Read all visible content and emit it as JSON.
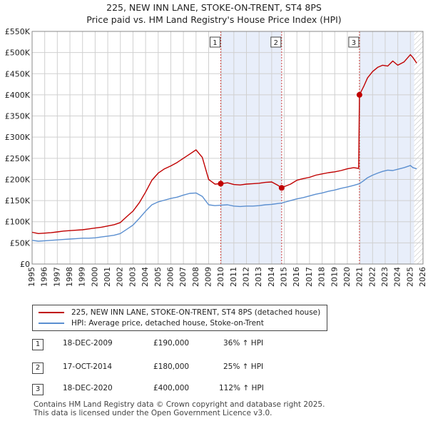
{
  "title_line1": "225, NEW INN LANE, STOKE-ON-TRENT, ST4 8PS",
  "title_line2": "Price paid vs. HM Land Registry's House Price Index (HPI)",
  "chart_data": {
    "type": "line",
    "xlim": [
      1995,
      2026
    ],
    "ylim": [
      0,
      550000
    ],
    "y_ticks": [
      0,
      50000,
      100000,
      150000,
      200000,
      250000,
      300000,
      350000,
      400000,
      450000,
      500000,
      550000
    ],
    "y_tick_labels": [
      "£0",
      "£50K",
      "£100K",
      "£150K",
      "£200K",
      "£250K",
      "£300K",
      "£350K",
      "£400K",
      "£450K",
      "£500K",
      "£550K"
    ],
    "x_ticks": [
      1995,
      1996,
      1997,
      1998,
      1999,
      2000,
      2001,
      2002,
      2003,
      2004,
      2005,
      2006,
      2007,
      2008,
      2009,
      2010,
      2011,
      2012,
      2013,
      2014,
      2015,
      2016,
      2017,
      2018,
      2019,
      2020,
      2021,
      2022,
      2023,
      2024,
      2025,
      2026
    ],
    "x_tick_labels": [
      "1995",
      "1996",
      "1997",
      "1998",
      "1999",
      "2000",
      "2001",
      "2002",
      "2003",
      "2004",
      "2005",
      "2006",
      "2007",
      "2008",
      "2009",
      "2010",
      "2011",
      "2012",
      "2013",
      "2014",
      "2015",
      "2016",
      "2017",
      "2018",
      "2019",
      "2020",
      "2021",
      "2022",
      "2023",
      "2024",
      "2025",
      "2026"
    ],
    "grid": true,
    "shaded_regions": [
      [
        2009.96,
        2014.79
      ],
      [
        2020.96,
        2025.3
      ]
    ],
    "hatched_region": [
      2025.3,
      2026
    ],
    "series": [
      {
        "name": "225, NEW INN LANE, STOKE-ON-TRENT, ST4 8PS (detached house)",
        "color": "#c00000",
        "x": [
          1995.0,
          1995.5,
          1996.0,
          1996.5,
          1997.0,
          1997.5,
          1998.0,
          1998.5,
          1999.0,
          1999.5,
          2000.0,
          2000.5,
          2001.0,
          2001.5,
          2002.0,
          2002.5,
          2003.0,
          2003.5,
          2004.0,
          2004.5,
          2005.0,
          2005.5,
          2006.0,
          2006.5,
          2007.0,
          2007.5,
          2008.0,
          2008.5,
          2009.0,
          2009.5,
          2009.96,
          2010.5,
          2011.0,
          2011.5,
          2012.0,
          2012.5,
          2013.0,
          2013.5,
          2014.0,
          2014.5,
          2014.79,
          2015.0,
          2015.5,
          2016.0,
          2016.5,
          2017.0,
          2017.5,
          2018.0,
          2018.5,
          2019.0,
          2019.5,
          2020.0,
          2020.5,
          2020.9,
          2020.96,
          2021.3,
          2021.6,
          2022.0,
          2022.4,
          2022.8,
          2023.2,
          2023.6,
          2024.0,
          2024.5,
          2025.0,
          2025.2,
          2025.5
        ],
        "values": [
          75000,
          72000,
          73000,
          74000,
          76000,
          78000,
          79000,
          80000,
          81000,
          83000,
          85000,
          87000,
          90000,
          93000,
          98000,
          112000,
          125000,
          145000,
          170000,
          198000,
          215000,
          225000,
          232000,
          240000,
          250000,
          260000,
          270000,
          252000,
          200000,
          189000,
          190000,
          192000,
          188000,
          187000,
          189000,
          190000,
          191000,
          193000,
          194000,
          186000,
          180000,
          183000,
          189000,
          198000,
          202000,
          205000,
          210000,
          213000,
          216000,
          218000,
          221000,
          225000,
          228000,
          226000,
          400000,
          420000,
          440000,
          455000,
          465000,
          470000,
          468000,
          480000,
          470000,
          478000,
          495000,
          488000,
          475000
        ]
      },
      {
        "name": "HPI: Average price, detached house, Stoke-on-Trent",
        "color": "#5b8fd0",
        "x": [
          1995.0,
          1995.5,
          1996.0,
          1996.5,
          1997.0,
          1997.5,
          1998.0,
          1998.5,
          1999.0,
          1999.5,
          2000.0,
          2000.5,
          2001.0,
          2001.5,
          2002.0,
          2002.5,
          2003.0,
          2003.5,
          2004.0,
          2004.5,
          2005.0,
          2005.5,
          2006.0,
          2006.5,
          2007.0,
          2007.5,
          2008.0,
          2008.5,
          2009.0,
          2009.5,
          2009.96,
          2010.5,
          2011.0,
          2011.5,
          2012.0,
          2012.5,
          2013.0,
          2013.5,
          2014.0,
          2014.5,
          2014.79,
          2015.0,
          2015.5,
          2016.0,
          2016.5,
          2017.0,
          2017.5,
          2018.0,
          2018.5,
          2019.0,
          2019.5,
          2020.0,
          2020.5,
          2020.96,
          2021.3,
          2021.6,
          2022.0,
          2022.4,
          2022.8,
          2023.2,
          2023.6,
          2024.0,
          2024.5,
          2025.0,
          2025.2,
          2025.5
        ],
        "values": [
          56000,
          54000,
          55000,
          56000,
          57000,
          58000,
          59000,
          60000,
          61000,
          61000,
          62000,
          64000,
          66000,
          68000,
          72000,
          82000,
          92000,
          108000,
          125000,
          140000,
          147000,
          151000,
          155000,
          158000,
          163000,
          167000,
          168000,
          160000,
          140000,
          138000,
          139000,
          140000,
          137000,
          136000,
          137000,
          137000,
          138000,
          140000,
          141000,
          143000,
          144000,
          146000,
          150000,
          154000,
          157000,
          161000,
          165000,
          168000,
          172000,
          175000,
          179000,
          182000,
          186000,
          190000,
          197000,
          204000,
          210000,
          215000,
          219000,
          222000,
          221000,
          224000,
          228000,
          233000,
          228000,
          225000
        ]
      }
    ],
    "sales": [
      {
        "id": "1",
        "x": 2009.96,
        "price": 190000
      },
      {
        "id": "2",
        "x": 2014.79,
        "price": 180000
      },
      {
        "id": "3",
        "x": 2020.96,
        "price": 400000
      }
    ]
  },
  "legend": [
    {
      "label": "225, NEW INN LANE, STOKE-ON-TRENT, ST4 8PS (detached house)",
      "color": "#c00000"
    },
    {
      "label": "HPI: Average price, detached house, Stoke-on-Trent",
      "color": "#5b8fd0"
    }
  ],
  "transactions": [
    {
      "id": "1",
      "date": "18-DEC-2009",
      "price": "£190,000",
      "hpi": "36% ↑ HPI"
    },
    {
      "id": "2",
      "date": "17-OCT-2014",
      "price": "£180,000",
      "hpi": "25% ↑ HPI"
    },
    {
      "id": "3",
      "date": "18-DEC-2020",
      "price": "£400,000",
      "hpi": "112% ↑ HPI"
    }
  ],
  "footer_line1": "Contains HM Land Registry data © Crown copyright and database right 2025.",
  "footer_line2": "This data is licensed under the Open Government Licence v3.0."
}
